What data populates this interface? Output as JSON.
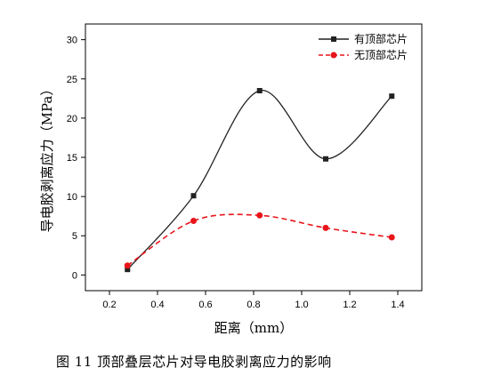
{
  "chart_data": {
    "type": "line",
    "xlabel": "距离（mm）",
    "ylabel": "导电胶剥离应力（MPa）",
    "xlim": [
      0.1,
      1.5
    ],
    "ylim": [
      -2,
      32
    ],
    "xticks": [
      "0.2",
      "0.4",
      "0.6",
      "0.8",
      "1.0",
      "1.2",
      "1.4"
    ],
    "yticks": [
      "0",
      "5",
      "10",
      "15",
      "20",
      "25",
      "30"
    ],
    "legend_position": "top-right",
    "series": [
      {
        "name": "有顶部芯片",
        "color": "#222222",
        "marker": "square",
        "line": "solid",
        "x": [
          0.275,
          0.55,
          0.825,
          1.1,
          1.375
        ],
        "y": [
          0.7,
          10.1,
          23.5,
          14.8,
          22.8
        ]
      },
      {
        "name": "无顶部芯片",
        "color": "#e8151b",
        "marker": "circle",
        "line": "dashed",
        "x": [
          0.275,
          0.55,
          0.825,
          1.1,
          1.375
        ],
        "y": [
          1.2,
          6.9,
          7.6,
          6.0,
          4.8
        ]
      }
    ]
  },
  "caption": "图 11   顶部叠层芯片对导电胶剥离应力的影响"
}
